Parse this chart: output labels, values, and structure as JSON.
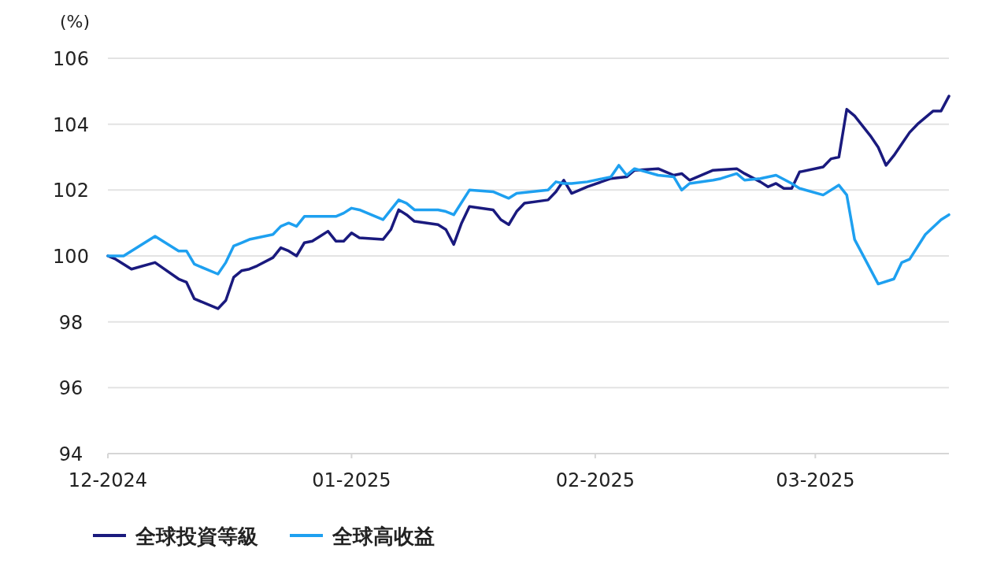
{
  "chart_data": {
    "type": "line",
    "ylabel": "(%)",
    "xlim": [
      "2024-12-01",
      "2025-03-18"
    ],
    "ylim": [
      94,
      106
    ],
    "yticks": [
      94,
      96,
      98,
      100,
      102,
      104,
      106
    ],
    "xticks": [
      {
        "value": "2024-12-01",
        "label": "12-2024"
      },
      {
        "value": "2025-01-01",
        "label": "01-2025"
      },
      {
        "value": "2025-02-01",
        "label": "02-2025"
      },
      {
        "value": "2025-03-01",
        "label": "03-2025"
      }
    ],
    "grid": "y",
    "legend": "bottom",
    "line_style": "solid",
    "series": [
      {
        "name": "全球投資等級",
        "color": "#1a1a7e",
        "x": [
          "2024-12-01",
          "2024-12-02",
          "2024-12-04",
          "2024-12-07",
          "2024-12-10",
          "2024-12-11",
          "2024-12-12",
          "2024-12-15",
          "2024-12-16",
          "2024-12-17",
          "2024-12-18",
          "2024-12-19",
          "2024-12-20",
          "2024-12-22",
          "2024-12-23",
          "2024-12-24",
          "2024-12-25",
          "2024-12-26",
          "2024-12-27",
          "2024-12-28",
          "2024-12-29",
          "2024-12-30",
          "2024-12-31",
          "2025-01-01",
          "2025-01-02",
          "2025-01-05",
          "2025-01-06",
          "2025-01-07",
          "2025-01-08",
          "2025-01-09",
          "2025-01-12",
          "2025-01-13",
          "2025-01-14",
          "2025-01-15",
          "2025-01-16",
          "2025-01-19",
          "2025-01-20",
          "2025-01-21",
          "2025-01-22",
          "2025-01-23",
          "2025-01-26",
          "2025-01-27",
          "2025-01-28",
          "2025-01-29",
          "2025-01-31",
          "2025-02-03",
          "2025-02-05",
          "2025-02-06",
          "2025-02-09",
          "2025-02-10",
          "2025-02-11",
          "2025-02-12",
          "2025-02-13",
          "2025-02-16",
          "2025-02-19",
          "2025-02-20",
          "2025-02-22",
          "2025-02-23",
          "2025-02-24",
          "2025-02-25",
          "2025-02-26",
          "2025-02-27",
          "2025-03-02",
          "2025-03-03",
          "2025-03-04",
          "2025-03-05",
          "2025-03-06",
          "2025-03-08",
          "2025-03-09",
          "2025-03-10",
          "2025-03-11",
          "2025-03-12",
          "2025-03-13",
          "2025-03-14",
          "2025-03-16",
          "2025-03-17",
          "2025-03-18"
        ],
        "values": [
          100,
          99.9,
          99.6,
          99.8,
          99.3,
          99.2,
          98.7,
          98.4,
          98.65,
          99.35,
          99.55,
          99.6,
          99.7,
          99.95,
          100.25,
          100.15,
          100,
          100.4,
          100.45,
          100.6,
          100.75,
          100.45,
          100.45,
          100.7,
          100.55,
          100.5,
          100.8,
          101.4,
          101.25,
          101.05,
          100.95,
          100.8,
          100.35,
          101,
          101.5,
          101.4,
          101.1,
          100.95,
          101.35,
          101.6,
          101.7,
          101.95,
          102.3,
          101.9,
          102.1,
          102.35,
          102.4,
          102.6,
          102.65,
          102.55,
          102.45,
          102.5,
          102.3,
          102.6,
          102.65,
          102.5,
          102.25,
          102.1,
          102.2,
          102.05,
          102.05,
          102.55,
          102.7,
          102.95,
          103.0,
          104.45,
          104.25,
          103.65,
          103.3,
          102.75,
          103.05,
          103.4,
          103.75,
          104.0,
          104.4,
          104.4,
          104.85
        ]
      },
      {
        "name": "全球高收益",
        "color": "#1ea0f0",
        "x": [
          "2024-12-01",
          "2024-12-03",
          "2024-12-04",
          "2024-12-07",
          "2024-12-08",
          "2024-12-10",
          "2024-12-11",
          "2024-12-12",
          "2024-12-15",
          "2024-12-16",
          "2024-12-17",
          "2024-12-18",
          "2024-12-19",
          "2024-12-22",
          "2024-12-23",
          "2024-12-24",
          "2024-12-25",
          "2024-12-26",
          "2024-12-29",
          "2024-12-30",
          "2024-12-31",
          "2025-01-01",
          "2025-01-02",
          "2025-01-05",
          "2025-01-06",
          "2025-01-07",
          "2025-01-08",
          "2025-01-09",
          "2025-01-12",
          "2025-01-13",
          "2025-01-14",
          "2025-01-16",
          "2025-01-19",
          "2025-01-21",
          "2025-01-22",
          "2025-01-26",
          "2025-01-27",
          "2025-01-28",
          "2025-01-29",
          "2025-01-31",
          "2025-02-03",
          "2025-02-04",
          "2025-02-05",
          "2025-02-06",
          "2025-02-09",
          "2025-02-11",
          "2025-02-12",
          "2025-02-13",
          "2025-02-16",
          "2025-02-17",
          "2025-02-19",
          "2025-02-20",
          "2025-02-22",
          "2025-02-24",
          "2025-02-26",
          "2025-02-27",
          "2025-03-02",
          "2025-03-04",
          "2025-03-05",
          "2025-03-06",
          "2025-03-07",
          "2025-03-09",
          "2025-03-11",
          "2025-03-12",
          "2025-03-13",
          "2025-03-15",
          "2025-03-17",
          "2025-03-18"
        ],
        "values": [
          100,
          100,
          100.15,
          100.6,
          100.45,
          100.15,
          100.15,
          99.75,
          99.45,
          99.8,
          100.3,
          100.4,
          100.5,
          100.65,
          100.9,
          101.0,
          100.9,
          101.2,
          101.2,
          101.2,
          101.3,
          101.45,
          101.4,
          101.1,
          101.4,
          101.7,
          101.6,
          101.4,
          101.4,
          101.35,
          101.25,
          102.0,
          101.95,
          101.75,
          101.9,
          102.0,
          102.25,
          102.2,
          102.2,
          102.25,
          102.4,
          102.75,
          102.45,
          102.65,
          102.45,
          102.4,
          102.0,
          102.2,
          102.3,
          102.35,
          102.5,
          102.3,
          102.35,
          102.45,
          102.2,
          102.05,
          101.85,
          102.15,
          101.85,
          100.5,
          100.05,
          99.15,
          99.3,
          99.8,
          99.9,
          100.65,
          101.1,
          101.25
        ]
      }
    ]
  }
}
